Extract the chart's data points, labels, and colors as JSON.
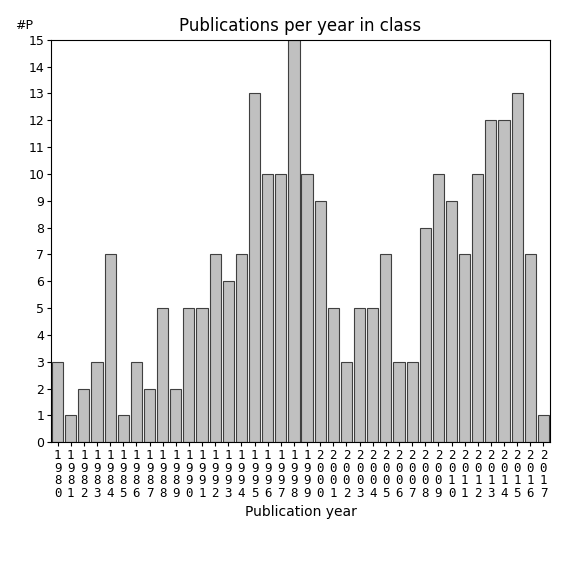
{
  "title": "Publications per year in class",
  "xlabel": "Publication year",
  "ylabel": "#P",
  "years": [
    1980,
    1981,
    1982,
    1983,
    1984,
    1985,
    1986,
    1987,
    1988,
    1989,
    1990,
    1991,
    1992,
    1993,
    1994,
    1995,
    1996,
    1997,
    1998,
    1999,
    2000,
    2001,
    2002,
    2003,
    2004,
    2005,
    2006,
    2007,
    2008,
    2009,
    2010,
    2011,
    2012,
    2013,
    2014,
    2015,
    2016,
    2017
  ],
  "values": [
    3,
    1,
    2,
    3,
    7,
    1,
    3,
    2,
    5,
    2,
    5,
    5,
    7,
    6,
    7,
    13,
    10,
    10,
    15,
    10,
    9,
    5,
    3,
    5,
    5,
    7,
    3,
    3,
    8,
    10,
    9,
    7,
    10,
    12,
    12,
    13,
    7,
    1
  ],
  "bar_color": "#c0c0c0",
  "bar_edge_color": "#404040",
  "bar_linewidth": 0.8,
  "ylim": [
    0,
    15
  ],
  "yticks": [
    0,
    1,
    2,
    3,
    4,
    5,
    6,
    7,
    8,
    9,
    10,
    11,
    12,
    13,
    14,
    15
  ],
  "background_color": "#ffffff",
  "title_fontsize": 12,
  "axis_label_fontsize": 10,
  "tick_fontsize": 9,
  "ylabel_fontsize": 9
}
